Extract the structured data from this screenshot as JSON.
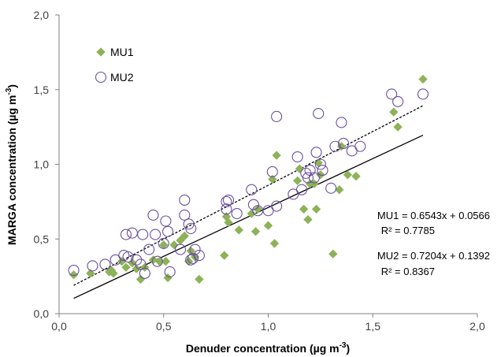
{
  "colors": {
    "mu1": "#8db257",
    "mu2": "#6a4f9c",
    "axis": "#808080",
    "line": "#000000"
  },
  "chart_data": {
    "type": "scatter",
    "xlabel": "Denuder concentration (µg m",
    "xlabel_sup": "-3",
    "xlabel_tail": ")",
    "ylabel": "MARGA concentration (µg m",
    "ylabel_sup": "-3",
    "ylabel_tail": ")",
    "xlim": [
      0,
      2
    ],
    "ylim": [
      0,
      2
    ],
    "xticks": [
      "0,0",
      "0,5",
      "1,0",
      "1,5",
      "2,0"
    ],
    "yticks": [
      "0,0",
      "0,5",
      "1,0",
      "1,5",
      "2,0"
    ],
    "legend": {
      "placement": "top-left"
    },
    "series": [
      {
        "name": "MU1",
        "marker": "diamond",
        "points": [
          [
            0.07,
            0.26
          ],
          [
            0.15,
            0.27
          ],
          [
            0.24,
            0.28
          ],
          [
            0.25,
            0.29
          ],
          [
            0.26,
            0.27
          ],
          [
            0.3,
            0.35
          ],
          [
            0.32,
            0.31
          ],
          [
            0.35,
            0.34
          ],
          [
            0.37,
            0.3
          ],
          [
            0.39,
            0.23
          ],
          [
            0.41,
            0.31
          ],
          [
            0.45,
            0.36
          ],
          [
            0.48,
            0.35
          ],
          [
            0.5,
            0.46
          ],
          [
            0.51,
            0.35
          ],
          [
            0.52,
            0.24
          ],
          [
            0.55,
            0.46
          ],
          [
            0.58,
            0.49
          ],
          [
            0.6,
            0.52
          ],
          [
            0.62,
            0.35
          ],
          [
            0.63,
            0.42
          ],
          [
            0.65,
            0.38
          ],
          [
            0.67,
            0.23
          ],
          [
            0.8,
            0.65
          ],
          [
            0.79,
            0.39
          ],
          [
            0.81,
            0.61
          ],
          [
            0.86,
            0.56
          ],
          [
            0.92,
            0.67
          ],
          [
            0.94,
            0.55
          ],
          [
            0.95,
            0.7
          ],
          [
            1.0,
            0.59
          ],
          [
            1.02,
            0.9
          ],
          [
            1.03,
            0.47
          ],
          [
            1.04,
            1.06
          ],
          [
            1.14,
            0.89
          ],
          [
            1.15,
            0.97
          ],
          [
            1.17,
            0.7
          ],
          [
            1.19,
            0.63
          ],
          [
            1.2,
            0.87
          ],
          [
            1.22,
            0.87
          ],
          [
            1.23,
            0.7
          ],
          [
            1.24,
            1.01
          ],
          [
            1.25,
            0.93
          ],
          [
            1.31,
            0.4
          ],
          [
            1.34,
            0.83
          ],
          [
            1.35,
            1.12
          ],
          [
            1.38,
            0.93
          ],
          [
            1.42,
            0.92
          ],
          [
            1.6,
            1.35
          ],
          [
            1.62,
            1.25
          ],
          [
            1.74,
            1.57
          ]
        ]
      },
      {
        "name": "MU2",
        "marker": "circle",
        "points": [
          [
            0.07,
            0.29
          ],
          [
            0.16,
            0.32
          ],
          [
            0.22,
            0.33
          ],
          [
            0.27,
            0.36
          ],
          [
            0.31,
            0.39
          ],
          [
            0.32,
            0.53
          ],
          [
            0.33,
            0.38
          ],
          [
            0.35,
            0.54
          ],
          [
            0.37,
            0.36
          ],
          [
            0.39,
            0.33
          ],
          [
            0.4,
            0.53
          ],
          [
            0.41,
            0.27
          ],
          [
            0.43,
            0.43
          ],
          [
            0.45,
            0.66
          ],
          [
            0.46,
            0.53
          ],
          [
            0.47,
            0.35
          ],
          [
            0.5,
            0.47
          ],
          [
            0.51,
            0.62
          ],
          [
            0.52,
            0.55
          ],
          [
            0.53,
            0.28
          ],
          [
            0.58,
            0.43
          ],
          [
            0.6,
            0.66
          ],
          [
            0.6,
            0.76
          ],
          [
            0.62,
            0.6
          ],
          [
            0.63,
            0.36
          ],
          [
            0.63,
            0.57
          ],
          [
            0.64,
            0.37
          ],
          [
            0.65,
            0.43
          ],
          [
            0.67,
            0.39
          ],
          [
            0.8,
            0.7
          ],
          [
            0.8,
            0.75
          ],
          [
            0.81,
            0.76
          ],
          [
            0.85,
            0.67
          ],
          [
            0.92,
            0.83
          ],
          [
            0.93,
            0.73
          ],
          [
            0.95,
            0.69
          ],
          [
            1.0,
            0.69
          ],
          [
            1.02,
            0.95
          ],
          [
            1.04,
            0.72
          ],
          [
            1.04,
            1.32
          ],
          [
            1.12,
            0.8
          ],
          [
            1.14,
            1.05
          ],
          [
            1.16,
            0.83
          ],
          [
            1.18,
            0.94
          ],
          [
            1.19,
            0.91
          ],
          [
            1.2,
            0.96
          ],
          [
            1.22,
            0.91
          ],
          [
            1.23,
            1.08
          ],
          [
            1.24,
            1.34
          ],
          [
            1.25,
            1.0
          ],
          [
            1.26,
            0.96
          ],
          [
            1.3,
            0.84
          ],
          [
            1.32,
            1.12
          ],
          [
            1.35,
            1.28
          ],
          [
            1.36,
            1.14
          ],
          [
            1.4,
            1.09
          ],
          [
            1.44,
            1.12
          ],
          [
            1.59,
            1.47
          ],
          [
            1.62,
            1.42
          ],
          [
            1.74,
            1.47
          ]
        ]
      }
    ],
    "trendlines": [
      {
        "series": "MU1",
        "style": "solid",
        "slope": 0.6543,
        "intercept": 0.0566,
        "x_range": [
          0.07,
          1.74
        ]
      },
      {
        "series": "MU2",
        "style": "dashed",
        "slope": 0.7204,
        "intercept": 0.1392,
        "x_range": [
          0.07,
          1.74
        ]
      }
    ],
    "annotations": [
      {
        "id": "mu1_eq",
        "text": "MU1 = 0.6543x + 0.0566"
      },
      {
        "id": "mu1_r2",
        "text": "R² = 0.7785"
      },
      {
        "id": "mu2_eq",
        "text": "MU2 = 0.7204x + 0.1392"
      },
      {
        "id": "mu2_r2",
        "text": "R² = 0.8367"
      }
    ]
  }
}
